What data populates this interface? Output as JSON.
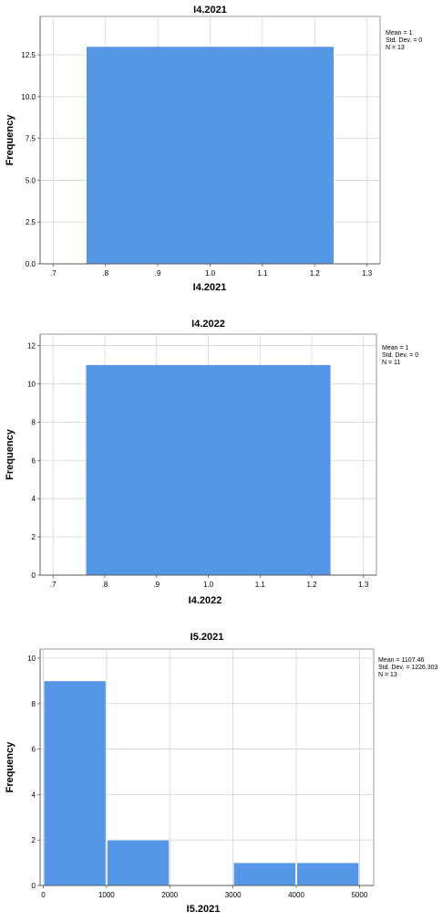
{
  "chart_data": [
    {
      "type": "bar",
      "title": "I4.2021",
      "xlabel": "I4.2021",
      "ylabel": "Frequency",
      "x_ticks": [
        ".7",
        ".8",
        ".9",
        "1.0",
        "1.1",
        "1.2",
        "1.3"
      ],
      "x_tick_values": [
        0.7,
        0.8,
        0.9,
        1.0,
        1.1,
        1.2,
        1.3
      ],
      "xlim": [
        0.675,
        1.325
      ],
      "y_ticks": [
        "0.0",
        "2.5",
        "5.0",
        "7.5",
        "10.0",
        "12.5"
      ],
      "y_tick_values": [
        0,
        2.5,
        5,
        7.5,
        10,
        12.5
      ],
      "ylim": [
        0,
        14.8
      ],
      "bins": [
        {
          "start": 0.762,
          "end": 1.238,
          "count": 13
        }
      ],
      "stats": [
        "Mean = 1",
        "Std. Dev. = 0",
        "N = 13"
      ],
      "bar_color": "#5597e6",
      "grid": true
    },
    {
      "type": "bar",
      "title": "I4.2022",
      "xlabel": "I4.2022",
      "ylabel": "Frequency",
      "x_ticks": [
        ".7",
        ".8",
        ".9",
        "1.0",
        "1.1",
        "1.2",
        "1.3"
      ],
      "x_tick_values": [
        0.7,
        0.8,
        0.9,
        1.0,
        1.1,
        1.2,
        1.3
      ],
      "xlim": [
        0.675,
        1.325
      ],
      "y_ticks": [
        "0",
        "2",
        "4",
        "6",
        "8",
        "10",
        "12"
      ],
      "y_tick_values": [
        0,
        2,
        4,
        6,
        8,
        10,
        12
      ],
      "ylim": [
        0,
        12.6
      ],
      "bins": [
        {
          "start": 0.762,
          "end": 1.238,
          "count": 11
        }
      ],
      "stats": [
        "Mean = 1",
        "Std. Dev. = 0",
        "N = 11"
      ],
      "bar_color": "#5597e6",
      "grid": true
    },
    {
      "type": "bar",
      "title": "I5.2021",
      "xlabel": "I5.2021",
      "ylabel": "Frequency",
      "x_ticks": [
        "0",
        "1000",
        "2000",
        "3000",
        "4000",
        "5000"
      ],
      "x_tick_values": [
        0,
        1000,
        2000,
        3000,
        4000,
        5000
      ],
      "xlim": [
        -50,
        5225
      ],
      "y_ticks": [
        "0",
        "2",
        "4",
        "6",
        "8",
        "10"
      ],
      "y_tick_values": [
        0,
        2,
        4,
        6,
        8,
        10
      ],
      "ylim": [
        0,
        10.4
      ],
      "bins": [
        {
          "start": 0,
          "end": 1000,
          "count": 9
        },
        {
          "start": 1000,
          "end": 2000,
          "count": 2
        },
        {
          "start": 2000,
          "end": 3000,
          "count": 0
        },
        {
          "start": 3000,
          "end": 4000,
          "count": 1
        },
        {
          "start": 4000,
          "end": 5000,
          "count": 1
        }
      ],
      "stats": [
        "Mean = 1107.46",
        "Std. Dev. = 1226.303",
        "N = 13"
      ],
      "bar_color": "#5597e6",
      "grid": true
    }
  ]
}
